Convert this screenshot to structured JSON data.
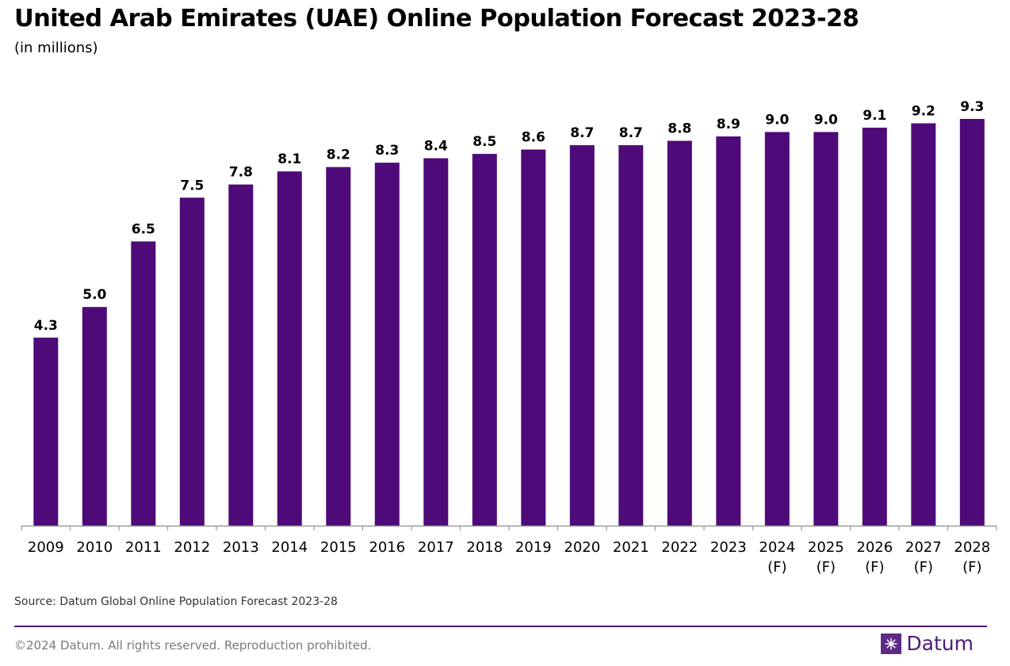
{
  "header": {
    "title": "United Arab Emirates (UAE) Online Population Forecast 2023-28",
    "subtitle": "(in millions)"
  },
  "chart_data": {
    "type": "bar",
    "title": "United Arab Emirates (UAE) Online Population Forecast 2023-28",
    "subtitle": "(in millions)",
    "xlabel": "",
    "ylabel": "",
    "categories": [
      "2009",
      "2010",
      "2011",
      "2012",
      "2013",
      "2014",
      "2015",
      "2016",
      "2017",
      "2018",
      "2019",
      "2020",
      "2021",
      "2022",
      "2023",
      "2024 (F)",
      "2025 (F)",
      "2026 (F)",
      "2027 (F)",
      "2028 (F)"
    ],
    "values": [
      4.3,
      5.0,
      6.5,
      7.5,
      7.8,
      8.1,
      8.2,
      8.3,
      8.4,
      8.5,
      8.6,
      8.7,
      8.7,
      8.8,
      8.9,
      9.0,
      9.0,
      9.1,
      9.2,
      9.3
    ],
    "ylim": [
      0,
      9.3
    ],
    "grid": false,
    "bar_color": "#4e0a78"
  },
  "footer": {
    "source": "Source: Datum Global Online Population Forecast 2023-28",
    "copyright": "©2024 Datum. All rights reserved. Reproduction prohibited.",
    "brand": "Datum",
    "brand_color": "#4e1a75",
    "brand_icon": "datum-logo-icon"
  }
}
